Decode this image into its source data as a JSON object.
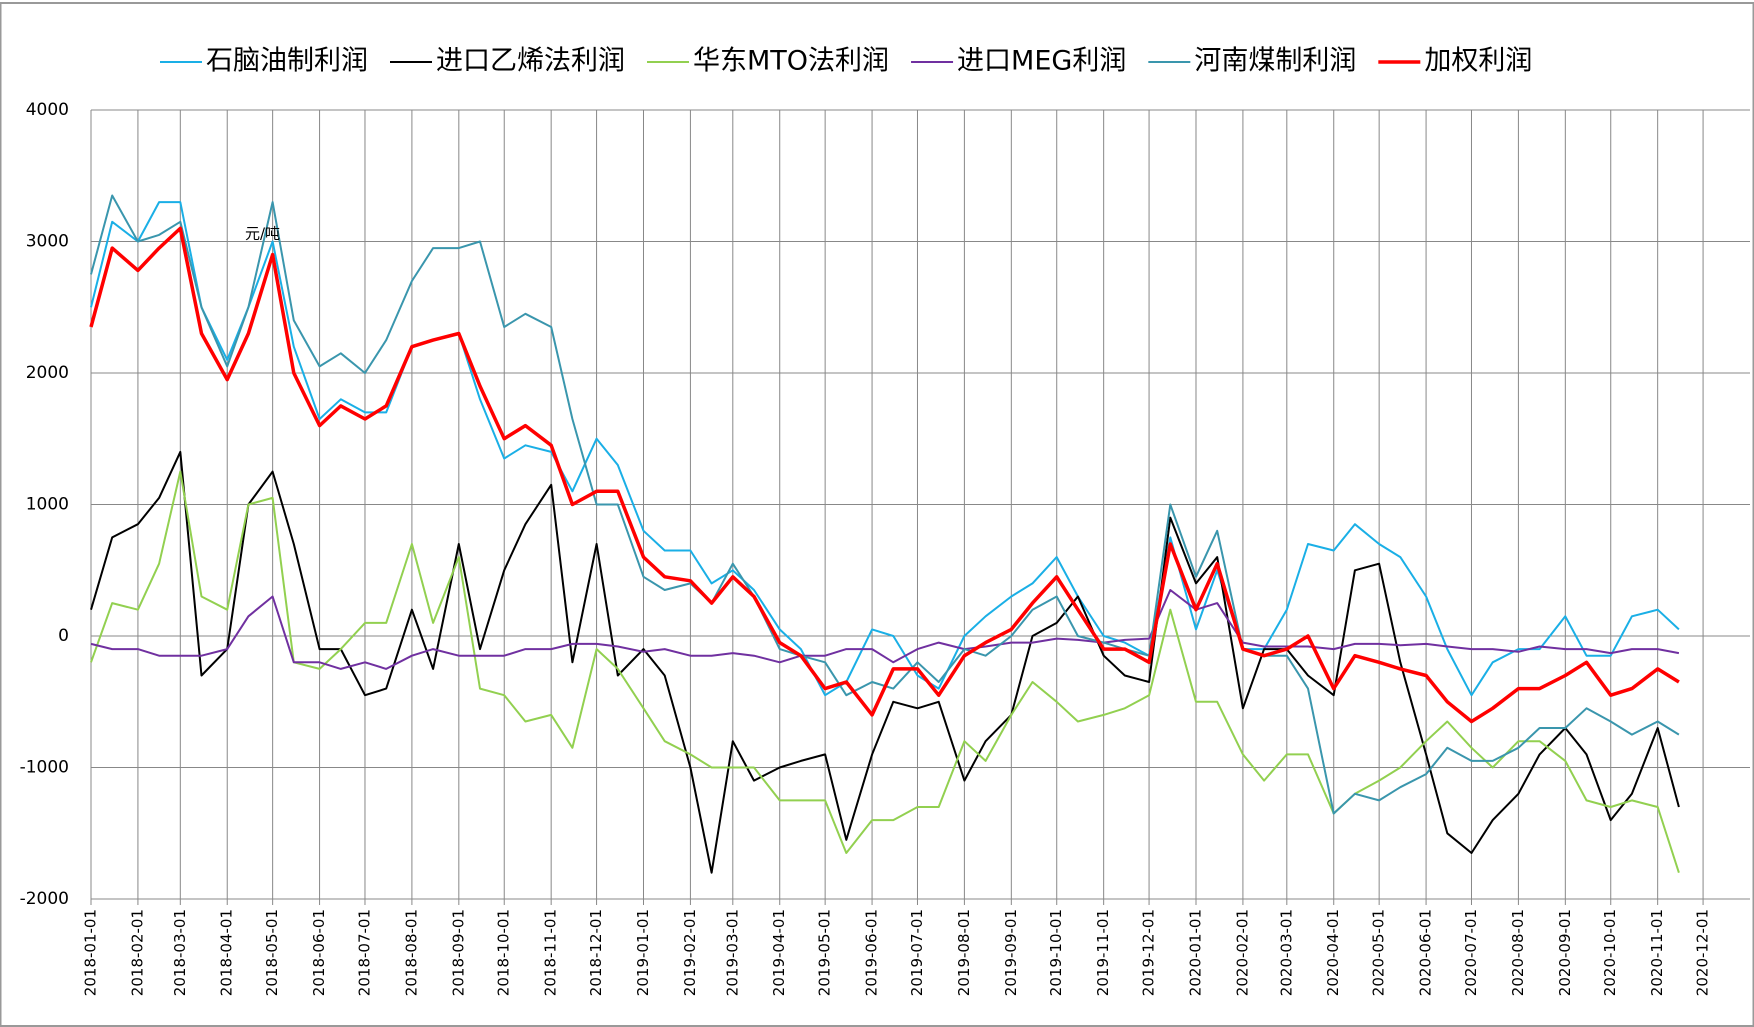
{
  "chart_data": {
    "type": "line",
    "annotation": "元/吨",
    "x": [
      "2018-01-01",
      "2018-01-15",
      "2018-02-01",
      "2018-02-15",
      "2018-03-01",
      "2018-03-15",
      "2018-04-01",
      "2018-04-15",
      "2018-05-01",
      "2018-05-15",
      "2018-06-01",
      "2018-06-15",
      "2018-07-01",
      "2018-07-15",
      "2018-08-01",
      "2018-08-15",
      "2018-09-01",
      "2018-09-15",
      "2018-10-01",
      "2018-10-15",
      "2018-11-01",
      "2018-11-15",
      "2018-12-01",
      "2018-12-15",
      "2019-01-01",
      "2019-01-15",
      "2019-02-01",
      "2019-02-15",
      "2019-03-01",
      "2019-03-15",
      "2019-04-01",
      "2019-04-15",
      "2019-05-01",
      "2019-05-15",
      "2019-06-01",
      "2019-06-15",
      "2019-07-01",
      "2019-07-15",
      "2019-08-01",
      "2019-08-15",
      "2019-09-01",
      "2019-09-15",
      "2019-10-01",
      "2019-10-15",
      "2019-11-01",
      "2019-11-15",
      "2019-12-01",
      "2019-12-15",
      "2020-01-01",
      "2020-01-15",
      "2020-02-01",
      "2020-02-15",
      "2020-03-01",
      "2020-03-15",
      "2020-04-01",
      "2020-04-15",
      "2020-05-01",
      "2020-05-15",
      "2020-06-01",
      "2020-06-15",
      "2020-07-01",
      "2020-07-15",
      "2020-08-01",
      "2020-08-15",
      "2020-09-01",
      "2020-09-15",
      "2020-10-01",
      "2020-10-15",
      "2020-11-01",
      "2020-11-15"
    ],
    "series": [
      {
        "name": "石脑油制利润",
        "color": "#1aafe6",
        "width": 2,
        "values": [
          2500,
          3150,
          3000,
          3300,
          3300,
          2500,
          2100,
          2500,
          3000,
          2200,
          1650,
          1800,
          1700,
          1700,
          2200,
          2250,
          2300,
          1800,
          1350,
          1450,
          1400,
          1100,
          1500,
          1300,
          800,
          650,
          650,
          400,
          500,
          350,
          50,
          -100,
          -450,
          -350,
          50,
          0,
          -300,
          -400,
          0,
          150,
          300,
          400,
          600,
          300,
          0,
          -50,
          -150,
          750,
          50,
          500,
          -100,
          -100,
          200,
          700,
          650,
          850,
          700,
          600,
          300,
          -100,
          -450,
          -200,
          -100,
          -100,
          150,
          -150,
          -150,
          150,
          200,
          50
        ]
      },
      {
        "name": "进口乙烯法利润",
        "color": "#000000",
        "width": 2,
        "values": [
          200,
          750,
          850,
          1050,
          1400,
          -300,
          -100,
          1000,
          1250,
          700,
          -100,
          -100,
          -450,
          -400,
          200,
          -250,
          700,
          -100,
          500,
          850,
          1150,
          -200,
          700,
          -300,
          -100,
          -300,
          -1000,
          -1800,
          -800,
          -1100,
          -1000,
          -950,
          -900,
          -1550,
          -900,
          -500,
          -550,
          -500,
          -1100,
          -800,
          -600,
          0,
          100,
          300,
          -150,
          -300,
          -350,
          900,
          400,
          600,
          -550,
          -100,
          -100,
          -300,
          -450,
          500,
          550,
          -200,
          -900,
          -1500,
          -1650,
          -1400,
          -1200,
          -900,
          -700,
          -900,
          -1400,
          -1200,
          -700,
          -1300
        ]
      },
      {
        "name": "华东MTO法利润",
        "color": "#92d050",
        "width": 2,
        "values": [
          -200,
          250,
          200,
          550,
          1250,
          300,
          200,
          1000,
          1050,
          -200,
          -250,
          -100,
          100,
          100,
          700,
          100,
          600,
          -400,
          -450,
          -650,
          -600,
          -850,
          -100,
          -250,
          -550,
          -800,
          -900,
          -1000,
          -1000,
          -1000,
          -1250,
          -1250,
          -1250,
          -1650,
          -1400,
          -1400,
          -1300,
          -1300,
          -800,
          -950,
          -600,
          -350,
          -500,
          -650,
          -600,
          -550,
          -450,
          200,
          -500,
          -500,
          -900,
          -1100,
          -900,
          -900,
          -1350,
          -1200,
          -1100,
          -1000,
          -800,
          -650,
          -850,
          -1000,
          -800,
          -800,
          -950,
          -1250,
          -1300,
          -1250,
          -1300,
          -1800
        ]
      },
      {
        "name": "进口MEG利润",
        "color": "#7030a0",
        "width": 2,
        "values": [
          -60,
          -100,
          -100,
          -150,
          -150,
          -150,
          -100,
          150,
          300,
          -200,
          -200,
          -250,
          -200,
          -250,
          -150,
          -100,
          -150,
          -150,
          -150,
          -100,
          -100,
          -60,
          -60,
          -80,
          -120,
          -100,
          -150,
          -150,
          -130,
          -150,
          -200,
          -150,
          -150,
          -100,
          -100,
          -200,
          -100,
          -50,
          -100,
          -80,
          -50,
          -50,
          -20,
          -30,
          -50,
          -30,
          -20,
          350,
          200,
          250,
          -50,
          -80,
          -80,
          -80,
          -100,
          -60,
          -60,
          -70,
          -60,
          -80,
          -100,
          -100,
          -120,
          -80,
          -100,
          -100,
          -130,
          -100,
          -100,
          -130
        ]
      },
      {
        "name": "河南煤制利润",
        "color": "#3a96ad",
        "width": 2,
        "values": [
          2750,
          3350,
          3000,
          3050,
          3150,
          2500,
          2050,
          2500,
          3300,
          2400,
          2050,
          2150,
          2000,
          2250,
          2700,
          2950,
          2950,
          3000,
          2350,
          2450,
          2350,
          1650,
          1000,
          1000,
          450,
          350,
          400,
          250,
          550,
          300,
          -100,
          -150,
          -200,
          -450,
          -350,
          -400,
          -200,
          -350,
          -100,
          -150,
          0,
          200,
          300,
          0,
          -50,
          -100,
          -150,
          1000,
          450,
          800,
          -100,
          -150,
          -150,
          -400,
          -1350,
          -1200,
          -1250,
          -1150,
          -1050,
          -850,
          -950,
          -950,
          -850,
          -700,
          -700,
          -550,
          -650,
          -750,
          -650,
          -750
        ]
      },
      {
        "name": "加权利润",
        "color": "#ff0000",
        "width": 3.5,
        "values": [
          2350,
          2950,
          2780,
          2950,
          3100,
          2300,
          1950,
          2300,
          2900,
          2000,
          1600,
          1750,
          1650,
          1750,
          2200,
          2250,
          2300,
          1900,
          1500,
          1600,
          1450,
          1000,
          1100,
          1100,
          600,
          450,
          420,
          250,
          450,
          300,
          -50,
          -150,
          -400,
          -350,
          -600,
          -250,
          -250,
          -450,
          -150,
          -50,
          50,
          250,
          450,
          200,
          -100,
          -100,
          -200,
          700,
          200,
          550,
          -100,
          -150,
          -100,
          0,
          -400,
          -150,
          -200,
          -250,
          -300,
          -500,
          -650,
          -550,
          -400,
          -400,
          -300,
          -200,
          -450,
          -400,
          -250,
          -350
        ]
      }
    ],
    "xlim": [
      "2018-01-01",
      "2021-01-01"
    ],
    "xticks": [
      "2018-01-01",
      "2018-02-01",
      "2018-03-01",
      "2018-04-01",
      "2018-05-01",
      "2018-06-01",
      "2018-07-01",
      "2018-08-01",
      "2018-09-01",
      "2018-10-01",
      "2018-11-01",
      "2018-12-01",
      "2019-01-01",
      "2019-02-01",
      "2019-03-01",
      "2019-04-01",
      "2019-05-01",
      "2019-06-01",
      "2019-07-01",
      "2019-08-01",
      "2019-09-01",
      "2019-10-01",
      "2019-11-01",
      "2019-12-01",
      "2020-01-01",
      "2020-02-01",
      "2020-03-01",
      "2020-04-01",
      "2020-05-01",
      "2020-06-01",
      "2020-07-01",
      "2020-08-01",
      "2020-09-01",
      "2020-10-01",
      "2020-11-01",
      "2020-12-01"
    ],
    "ylim": [
      -2000,
      4000
    ],
    "yticks": [
      -2000,
      -1000,
      0,
      1000,
      2000,
      3000,
      4000
    ],
    "grid": true,
    "legend": "top"
  }
}
